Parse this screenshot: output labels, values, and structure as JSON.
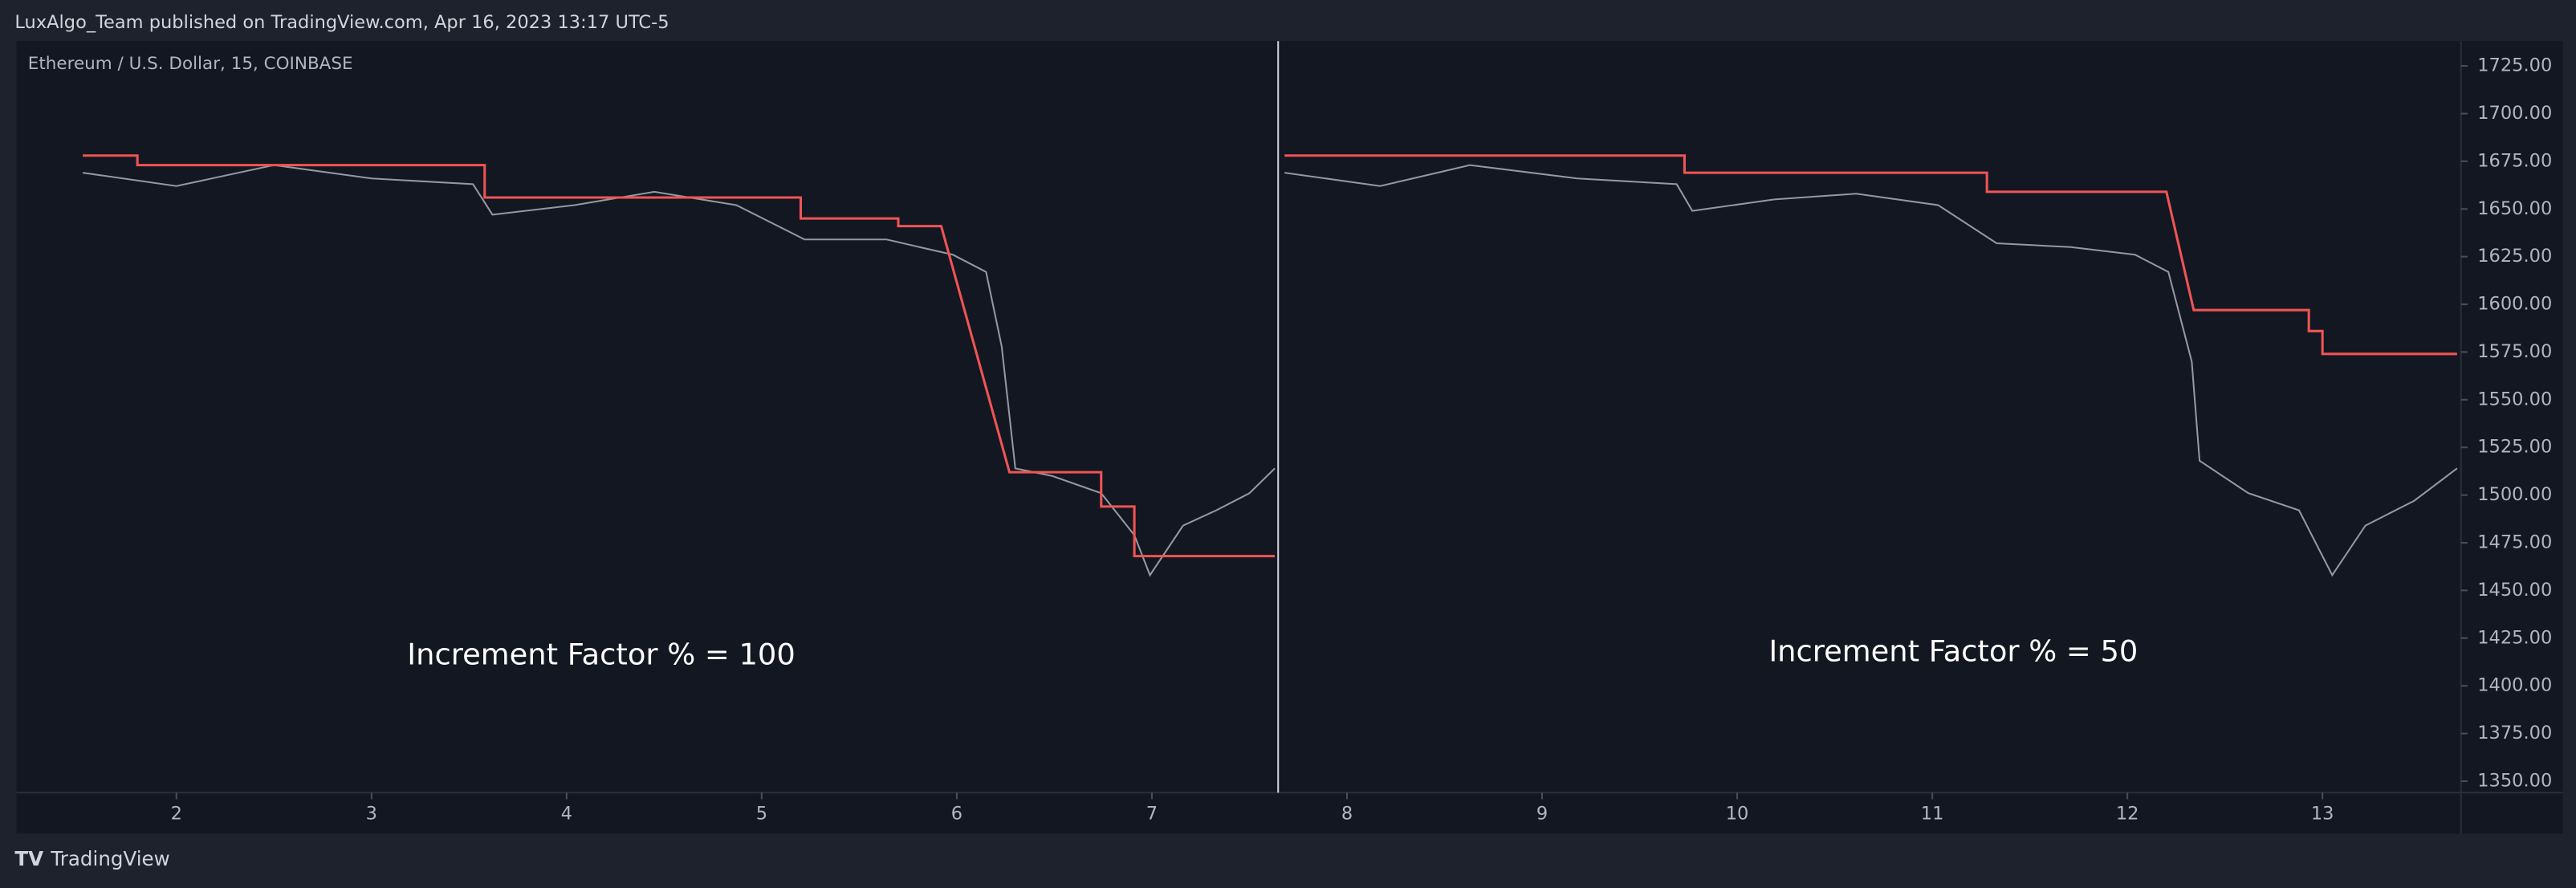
{
  "chart_data": {
    "type": "line",
    "header": "LuxAlgo_Team published on TradingView.com, Apr 16, 2023 13:17 UTC-5",
    "symbol": "Ethereum / U.S. Dollar, 15, COINBASE",
    "annotations": [
      "Increment Factor % = 100",
      "Increment Factor % = 50"
    ],
    "brand": "TradingView",
    "grid": false,
    "xlim": [
      1.18,
      13.71
    ],
    "xticks": [
      2,
      3,
      4,
      5,
      6,
      7,
      8,
      9,
      10,
      11,
      12,
      13
    ],
    "ylim": [
      1344,
      1738
    ],
    "yticks": [
      {
        "value": 1350,
        "label": "1350.00"
      },
      {
        "value": 1375,
        "label": "1375.00"
      },
      {
        "value": 1400,
        "label": "1400.00"
      },
      {
        "value": 1425,
        "label": "1425.00"
      },
      {
        "value": 1450,
        "label": "1450.00"
      },
      {
        "value": 1475,
        "label": "1475.00"
      },
      {
        "value": 1500,
        "label": "1500.00"
      },
      {
        "value": 1525,
        "label": "1525.00"
      },
      {
        "value": 1550,
        "label": "1550.00"
      },
      {
        "value": 1575,
        "label": "1575.00"
      },
      {
        "value": 1600,
        "label": "1600.00"
      },
      {
        "value": 1625,
        "label": "1625.00"
      },
      {
        "value": 1650,
        "label": "1650.00"
      },
      {
        "value": 1675,
        "label": "1675.00"
      },
      {
        "value": 1700,
        "label": "1700.00"
      },
      {
        "value": 1725,
        "label": "1725.00"
      }
    ],
    "series": [
      {
        "color": "#9598a1",
        "x": [
          1.52,
          2.0,
          2.5,
          3.0,
          3.52,
          3.62,
          4.04,
          4.45,
          4.87,
          5.22,
          5.64,
          5.98,
          6.15,
          6.23,
          6.3,
          6.49,
          6.74,
          6.91,
          6.99,
          7.16,
          7.33,
          7.5,
          7.63,
          7.655,
          7.68,
          8.17,
          8.63,
          9.18,
          9.69,
          9.77,
          10.19,
          10.61,
          11.03,
          11.33,
          11.71,
          12.04,
          12.21,
          12.33,
          12.37,
          12.62,
          12.88,
          13.05,
          13.22,
          13.47,
          13.69
        ],
        "values": [
          1669,
          1662,
          1673,
          1666,
          1663,
          1647,
          1652,
          1659,
          1652,
          1634,
          1634,
          1626,
          1617,
          1578,
          1514,
          1510,
          1501,
          1479,
          1458,
          1484,
          1492,
          1501,
          1514,
          null,
          1669,
          1662,
          1673,
          1666,
          1663,
          1649,
          1655,
          1658,
          1652,
          1632,
          1630,
          1626,
          1617,
          1570,
          1518,
          1501,
          1492,
          1458,
          1484,
          1497,
          1514
        ]
      },
      {
        "color": "#f05454",
        "x": [
          1.52,
          1.8,
          1.8,
          3.58,
          3.58,
          5.2,
          5.2,
          5.7,
          5.7,
          5.92,
          6.27,
          6.74,
          6.74,
          6.91,
          6.91,
          7.63,
          7.655,
          7.68,
          9.73,
          9.73,
          11.28,
          11.28,
          12.2,
          12.34,
          12.93,
          12.93,
          13.0,
          13.0,
          13.69
        ],
        "values": [
          1678,
          1678,
          1673,
          1673,
          1656,
          1656,
          1645,
          1645,
          1641,
          1641,
          1512,
          1512,
          1494,
          1494,
          1468,
          1468,
          null,
          1678,
          1678,
          1669,
          1669,
          1659,
          1659,
          1597,
          1597,
          1586,
          1586,
          1574,
          1574
        ]
      }
    ]
  }
}
